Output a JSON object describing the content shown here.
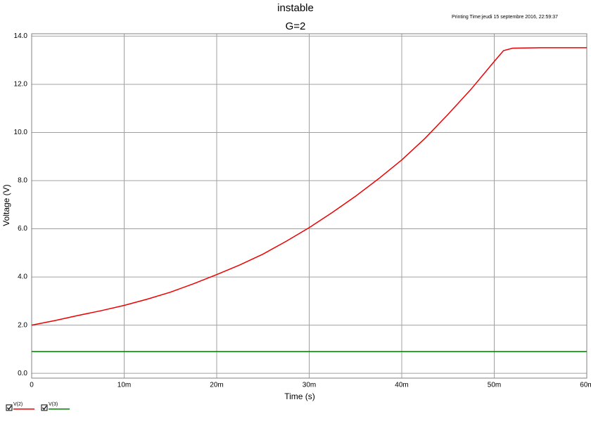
{
  "chart_data": {
    "type": "line",
    "title": "instable",
    "subtitle": "G=2",
    "printing_time": "Printing Time:jeudi 15 septembre 2016, 22:59:37",
    "x_label": "Time (s)",
    "y_label": "Voltage (V)",
    "x": [
      0,
      0.0025,
      0.005,
      0.0075,
      0.01,
      0.0125,
      0.015,
      0.0175,
      0.02,
      0.0225,
      0.025,
      0.0275,
      0.03,
      0.0325,
      0.035,
      0.0375,
      0.04,
      0.0425,
      0.045,
      0.0475,
      0.05,
      0.051,
      0.052,
      0.055,
      0.06
    ],
    "series": [
      {
        "name": "V(2)",
        "color": "#ee0000",
        "values": [
          2.0,
          2.19,
          2.4,
          2.6,
          2.82,
          3.08,
          3.37,
          3.72,
          4.1,
          4.5,
          4.95,
          5.48,
          6.05,
          6.68,
          7.35,
          8.08,
          8.86,
          9.75,
          10.75,
          11.8,
          12.95,
          13.4,
          13.5,
          13.52,
          13.52
        ]
      },
      {
        "name": "V(3)",
        "color": "#008000",
        "values": [
          0.9,
          0.9,
          0.9,
          0.9,
          0.9,
          0.9,
          0.9,
          0.9,
          0.9,
          0.9,
          0.9,
          0.9,
          0.9,
          0.9,
          0.9,
          0.9,
          0.9,
          0.9,
          0.9,
          0.9,
          0.9,
          0.9,
          0.9,
          0.9,
          0.9
        ]
      }
    ],
    "xlim": [
      0,
      0.06
    ],
    "xticks": [
      0,
      {
        "value": 0.01,
        "label": "10m"
      },
      {
        "value": 0.02,
        "label": "20m"
      },
      {
        "value": 0.03,
        "label": "30m"
      },
      {
        "value": 0.04,
        "label": "40m"
      },
      {
        "value": 0.05,
        "label": "50m"
      },
      {
        "value": 0.06,
        "label": "60m"
      }
    ],
    "ylim": [
      -0.2,
      14.1
    ],
    "yticks": [
      {
        "value": 0,
        "label": "0.0"
      },
      {
        "value": 2,
        "label": "2.0"
      },
      {
        "value": 4,
        "label": "4.0"
      },
      {
        "value": 6,
        "label": "6.0"
      },
      {
        "value": 8,
        "label": "8.0"
      },
      {
        "value": 10,
        "label": "10.0"
      },
      {
        "value": 12,
        "label": "12.0"
      },
      {
        "value": 14,
        "label": "14.0"
      }
    ],
    "grid": true
  }
}
